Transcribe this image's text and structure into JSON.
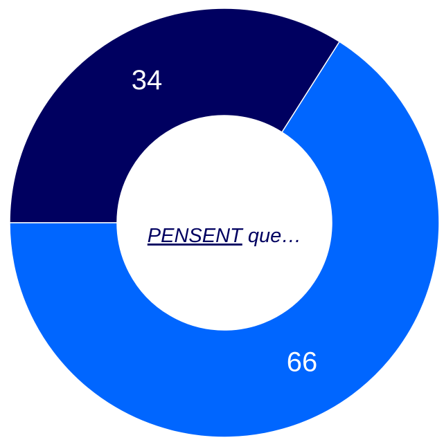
{
  "chart_data": {
    "type": "donut",
    "categories": [
      null,
      null
    ],
    "values": [
      34,
      66
    ],
    "colors": [
      "#000060",
      "#0066ff"
    ],
    "center_text": [
      "PENSENT",
      "que…"
    ]
  }
}
